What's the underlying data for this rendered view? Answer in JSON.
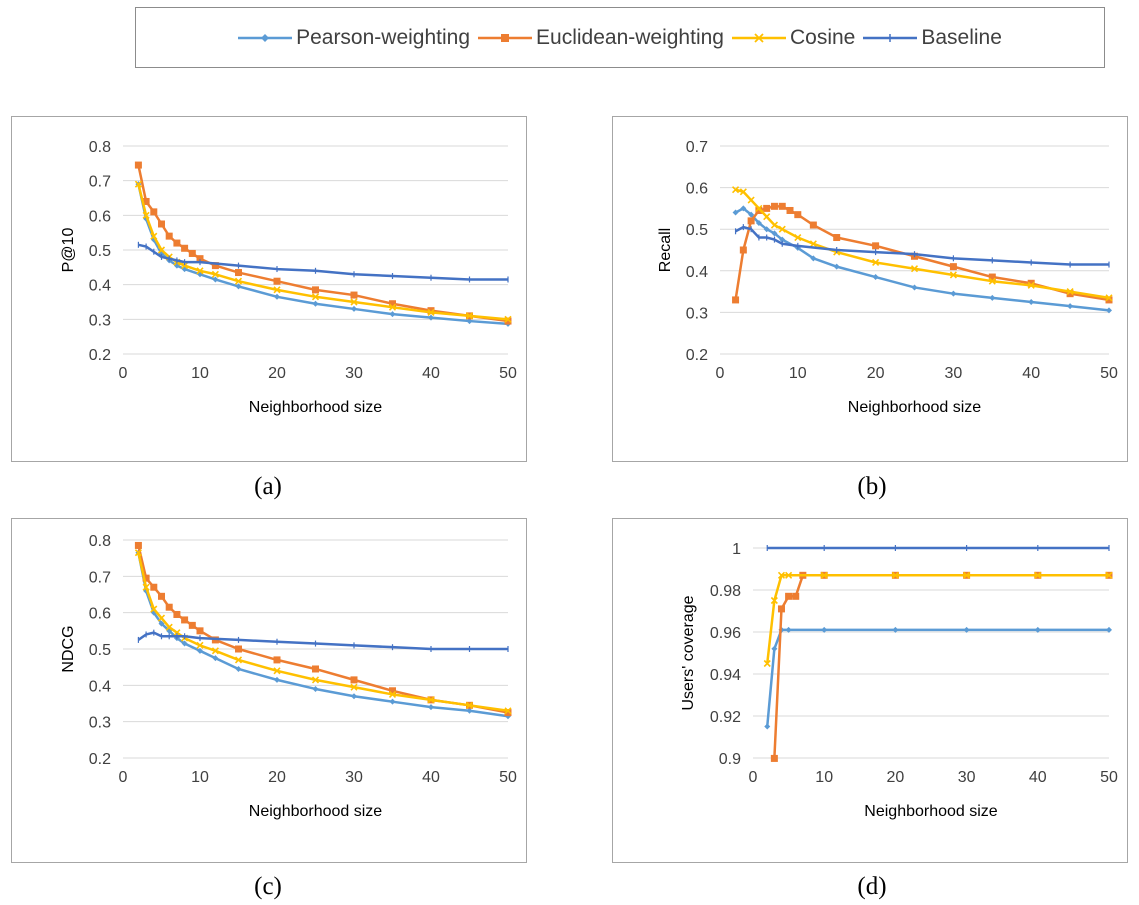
{
  "legend": {
    "items": [
      {
        "label": "Pearson-weighting",
        "color": "#5b9bd5",
        "marker": "diamond"
      },
      {
        "label": "Euclidean-weighting",
        "color": "#ed7d31",
        "marker": "square"
      },
      {
        "label": "Cosine",
        "color": "#ffc000",
        "marker": "x"
      },
      {
        "label": "Baseline",
        "color": "#4472c4",
        "marker": "dash"
      }
    ]
  },
  "captions": [
    "(a)",
    "(b)",
    "(c)",
    "(d)"
  ],
  "chart_data": [
    {
      "type": "line",
      "xlabel": "Neighborhood size",
      "ylabel": "P@10",
      "xlim": [
        0,
        50
      ],
      "xticks": [
        0,
        10,
        20,
        30,
        40,
        50
      ],
      "ylim": [
        0.2,
        0.8
      ],
      "yticks": [
        "0.2",
        "0.3",
        "0.4",
        "0.5",
        "0.6",
        "0.7",
        "0.8"
      ],
      "grid": true,
      "series": [
        {
          "name": "Pearson-weighting",
          "color": "#5b9bd5",
          "marker": "diamond",
          "x": [
            2,
            3,
            4,
            5,
            6,
            7,
            8,
            10,
            12,
            15,
            20,
            25,
            30,
            35,
            40,
            45,
            50
          ],
          "y": [
            0.69,
            0.59,
            0.53,
            0.49,
            0.47,
            0.455,
            0.445,
            0.43,
            0.415,
            0.395,
            0.365,
            0.345,
            0.33,
            0.315,
            0.305,
            0.295,
            0.287
          ]
        },
        {
          "name": "Euclidean-weighting",
          "color": "#ed7d31",
          "marker": "square",
          "x": [
            2,
            3,
            4,
            5,
            6,
            7,
            8,
            9,
            10,
            12,
            15,
            20,
            25,
            30,
            35,
            40,
            45,
            50
          ],
          "y": [
            0.745,
            0.64,
            0.61,
            0.575,
            0.54,
            0.52,
            0.505,
            0.49,
            0.475,
            0.455,
            0.435,
            0.41,
            0.385,
            0.37,
            0.345,
            0.325,
            0.31,
            0.295
          ]
        },
        {
          "name": "Cosine",
          "color": "#ffc000",
          "marker": "x",
          "x": [
            2,
            3,
            4,
            5,
            6,
            7,
            8,
            10,
            12,
            15,
            20,
            25,
            30,
            35,
            40,
            45,
            50
          ],
          "y": [
            0.69,
            0.6,
            0.54,
            0.5,
            0.48,
            0.465,
            0.455,
            0.44,
            0.43,
            0.41,
            0.385,
            0.365,
            0.35,
            0.335,
            0.32,
            0.31,
            0.3
          ]
        },
        {
          "name": "Baseline",
          "color": "#4472c4",
          "marker": "dash",
          "x": [
            2,
            3,
            4,
            5,
            6,
            7,
            8,
            10,
            15,
            20,
            25,
            30,
            35,
            40,
            45,
            50
          ],
          "y": [
            0.515,
            0.51,
            0.495,
            0.48,
            0.475,
            0.47,
            0.465,
            0.465,
            0.455,
            0.445,
            0.44,
            0.43,
            0.425,
            0.42,
            0.415,
            0.415
          ]
        }
      ]
    },
    {
      "type": "line",
      "xlabel": "Neighborhood size",
      "ylabel": "Recall",
      "xlim": [
        0,
        50
      ],
      "xticks": [
        0,
        10,
        20,
        30,
        40,
        50
      ],
      "ylim": [
        0.2,
        0.7
      ],
      "yticks": [
        "0.2",
        "0.3",
        "0.4",
        "0.5",
        "0.6",
        "0.7"
      ],
      "grid": true,
      "series": [
        {
          "name": "Pearson-weighting",
          "color": "#5b9bd5",
          "marker": "diamond",
          "x": [
            2,
            3,
            4,
            5,
            6,
            7,
            8,
            10,
            12,
            15,
            20,
            25,
            30,
            35,
            40,
            45,
            50
          ],
          "y": [
            0.54,
            0.55,
            0.535,
            0.515,
            0.5,
            0.49,
            0.475,
            0.455,
            0.43,
            0.41,
            0.385,
            0.36,
            0.345,
            0.335,
            0.325,
            0.315,
            0.305
          ]
        },
        {
          "name": "Euclidean-weighting",
          "color": "#ed7d31",
          "marker": "square",
          "x": [
            2,
            3,
            4,
            5,
            6,
            7,
            8,
            9,
            10,
            12,
            15,
            20,
            25,
            30,
            35,
            40,
            45,
            50
          ],
          "y": [
            0.33,
            0.45,
            0.52,
            0.545,
            0.55,
            0.555,
            0.555,
            0.545,
            0.535,
            0.51,
            0.48,
            0.46,
            0.435,
            0.41,
            0.385,
            0.37,
            0.345,
            0.33
          ]
        },
        {
          "name": "Cosine",
          "color": "#ffc000",
          "marker": "x",
          "x": [
            2,
            3,
            4,
            5,
            6,
            7,
            8,
            10,
            12,
            15,
            20,
            25,
            30,
            35,
            40,
            45,
            50
          ],
          "y": [
            0.595,
            0.59,
            0.57,
            0.55,
            0.53,
            0.51,
            0.5,
            0.48,
            0.465,
            0.445,
            0.42,
            0.405,
            0.39,
            0.375,
            0.365,
            0.35,
            0.335
          ]
        },
        {
          "name": "Baseline",
          "color": "#4472c4",
          "marker": "dash",
          "x": [
            2,
            3,
            4,
            5,
            6,
            7,
            8,
            10,
            15,
            20,
            25,
            30,
            35,
            40,
            45,
            50
          ],
          "y": [
            0.495,
            0.505,
            0.5,
            0.48,
            0.48,
            0.475,
            0.465,
            0.46,
            0.45,
            0.445,
            0.44,
            0.43,
            0.425,
            0.42,
            0.415,
            0.415
          ]
        }
      ]
    },
    {
      "type": "line",
      "xlabel": "Neighborhood size",
      "ylabel": "NDCG",
      "xlim": [
        0,
        50
      ],
      "xticks": [
        0,
        10,
        20,
        30,
        40,
        50
      ],
      "ylim": [
        0.2,
        0.8
      ],
      "yticks": [
        "0.2",
        "0.3",
        "0.4",
        "0.5",
        "0.6",
        "0.7",
        "0.8"
      ],
      "grid": true,
      "series": [
        {
          "name": "Pearson-weighting",
          "color": "#5b9bd5",
          "marker": "diamond",
          "x": [
            2,
            3,
            4,
            5,
            6,
            7,
            8,
            10,
            12,
            15,
            20,
            25,
            30,
            35,
            40,
            45,
            50
          ],
          "y": [
            0.765,
            0.66,
            0.6,
            0.57,
            0.55,
            0.53,
            0.515,
            0.495,
            0.475,
            0.445,
            0.415,
            0.39,
            0.37,
            0.355,
            0.34,
            0.33,
            0.315
          ]
        },
        {
          "name": "Euclidean-weighting",
          "color": "#ed7d31",
          "marker": "square",
          "x": [
            2,
            3,
            4,
            5,
            6,
            7,
            8,
            9,
            10,
            12,
            15,
            20,
            25,
            30,
            35,
            40,
            45,
            50
          ],
          "y": [
            0.785,
            0.695,
            0.67,
            0.645,
            0.615,
            0.595,
            0.58,
            0.565,
            0.55,
            0.525,
            0.5,
            0.47,
            0.445,
            0.415,
            0.385,
            0.36,
            0.345,
            0.325
          ]
        },
        {
          "name": "Cosine",
          "color": "#ffc000",
          "marker": "x",
          "x": [
            2,
            3,
            4,
            5,
            6,
            7,
            8,
            10,
            12,
            15,
            20,
            25,
            30,
            35,
            40,
            45,
            50
          ],
          "y": [
            0.765,
            0.67,
            0.61,
            0.585,
            0.56,
            0.545,
            0.53,
            0.51,
            0.495,
            0.47,
            0.44,
            0.415,
            0.395,
            0.375,
            0.36,
            0.345,
            0.33
          ]
        },
        {
          "name": "Baseline",
          "color": "#4472c4",
          "marker": "dash",
          "x": [
            2,
            3,
            4,
            5,
            6,
            7,
            8,
            10,
            15,
            20,
            25,
            30,
            35,
            40,
            45,
            50
          ],
          "y": [
            0.525,
            0.54,
            0.545,
            0.535,
            0.535,
            0.535,
            0.535,
            0.53,
            0.525,
            0.52,
            0.515,
            0.51,
            0.505,
            0.5,
            0.5,
            0.5
          ]
        }
      ]
    },
    {
      "type": "line",
      "xlabel": "Neighborhood size",
      "ylabel": "Users' coverage",
      "xlim": [
        0,
        50
      ],
      "xticks": [
        0,
        10,
        20,
        30,
        40,
        50
      ],
      "ylim": [
        0.9,
        1.0
      ],
      "yticks": [
        "0.9",
        "0.92",
        "0.94",
        "0.96",
        "0.98",
        "1"
      ],
      "grid": true,
      "series": [
        {
          "name": "Pearson-weighting",
          "color": "#5b9bd5",
          "marker": "diamond",
          "x": [
            2,
            3,
            4,
            5,
            10,
            20,
            30,
            40,
            50
          ],
          "y": [
            0.915,
            0.952,
            0.961,
            0.961,
            0.961,
            0.961,
            0.961,
            0.961,
            0.961
          ]
        },
        {
          "name": "Euclidean-weighting",
          "color": "#ed7d31",
          "marker": "square",
          "x": [
            3,
            4,
            5,
            6,
            7,
            10,
            20,
            30,
            40,
            50
          ],
          "y": [
            0.898,
            0.971,
            0.977,
            0.977,
            0.987,
            0.987,
            0.987,
            0.987,
            0.987,
            0.987
          ]
        },
        {
          "name": "Cosine",
          "color": "#ffc000",
          "marker": "x",
          "x": [
            2,
            3,
            4,
            5,
            10,
            20,
            30,
            40,
            50
          ],
          "y": [
            0.945,
            0.975,
            0.987,
            0.987,
            0.987,
            0.987,
            0.987,
            0.987,
            0.987
          ]
        },
        {
          "name": "Baseline",
          "color": "#4472c4",
          "marker": "dash",
          "x": [
            2,
            10,
            20,
            30,
            40,
            50
          ],
          "y": [
            1.0,
            1.0,
            1.0,
            1.0,
            1.0,
            1.0
          ]
        }
      ]
    }
  ]
}
